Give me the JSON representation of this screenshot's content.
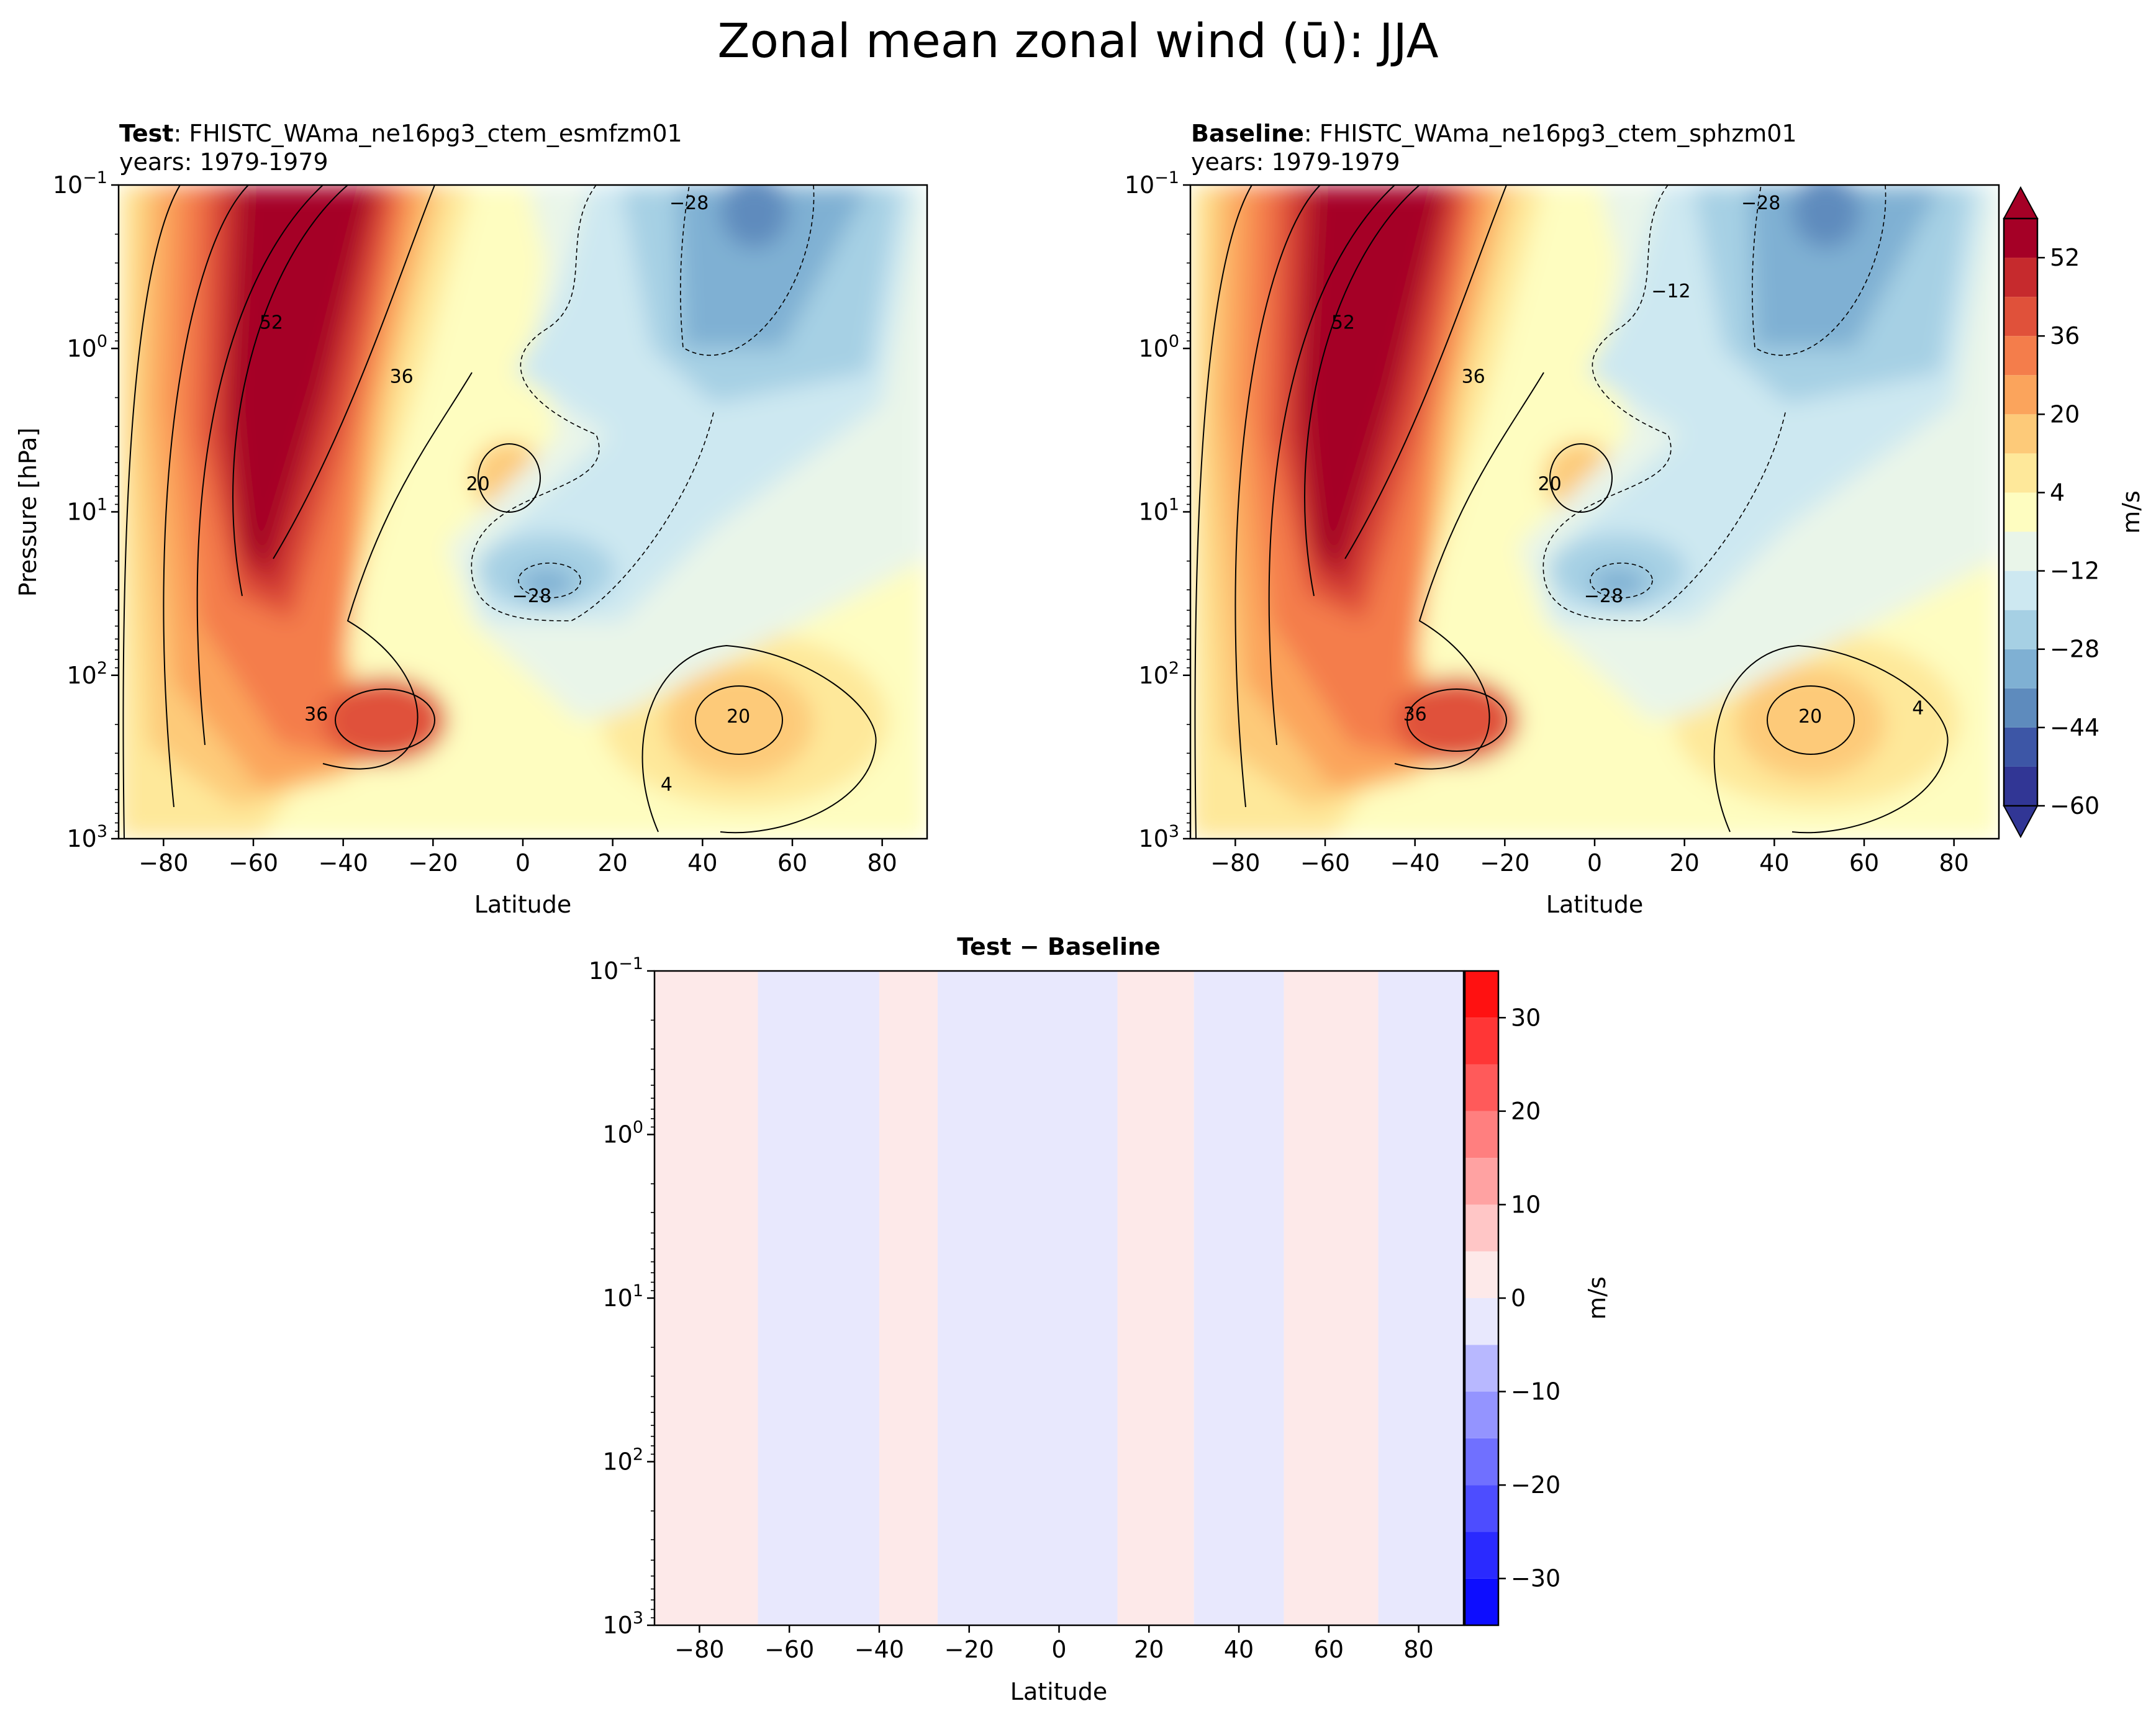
{
  "figure": {
    "title": "Zonal mean zonal wind (ū): JJA"
  },
  "chart_data": [
    {
      "type": "heatmap",
      "panel": "test",
      "title_prefix": "Test",
      "title_case": ": FHISTC_WAma_ne16pg3_ctem_esmfzm01",
      "title_years": "years: 1979-1979",
      "xlabel": "Latitude",
      "ylabel": "Pressure [hPa]",
      "xlim": [
        -90,
        90
      ],
      "ylim": [
        1000,
        0.1
      ],
      "yscale": "log",
      "x_ticks": [
        -80,
        -60,
        -40,
        -20,
        0,
        20,
        40,
        60,
        80
      ],
      "y_ticks": [
        {
          "value": 0.1,
          "base": "10",
          "exp": "−1"
        },
        {
          "value": 1,
          "base": "10",
          "exp": "0"
        },
        {
          "value": 10,
          "base": "10",
          "exp": "1"
        },
        {
          "value": 100,
          "base": "10",
          "exp": "2"
        },
        {
          "value": 1000,
          "base": "10",
          "exp": "3"
        }
      ],
      "contour_labels": [
        {
          "text": "52",
          "lat": -56,
          "p": 0.7
        },
        {
          "text": "36",
          "lat": -27,
          "p": 1.5
        },
        {
          "text": "20",
          "lat": -10,
          "p": 6.8
        },
        {
          "text": "−28",
          "lat": 2,
          "p": 33
        },
        {
          "text": "−28",
          "lat": 37,
          "p": 0.13
        },
        {
          "text": "36",
          "lat": -46,
          "p": 175
        },
        {
          "text": "20",
          "lat": 48,
          "p": 180
        },
        {
          "text": "4",
          "lat": 32,
          "p": 470
        }
      ]
    },
    {
      "type": "heatmap",
      "panel": "baseline",
      "title_prefix": "Baseline",
      "title_case": ": FHISTC_WAma_ne16pg3_ctem_sphzm01",
      "title_years": "years: 1979-1979",
      "xlabel": "Latitude",
      "xlim": [
        -90,
        90
      ],
      "ylim": [
        1000,
        0.1
      ],
      "yscale": "log",
      "x_ticks": [
        -80,
        -60,
        -40,
        -20,
        0,
        20,
        40,
        60,
        80
      ],
      "contour_labels": [
        {
          "text": "52",
          "lat": -56,
          "p": 0.7
        },
        {
          "text": "36",
          "lat": -27,
          "p": 1.5
        },
        {
          "text": "20",
          "lat": -10,
          "p": 6.8
        },
        {
          "text": "−12",
          "lat": 17,
          "p": 0.45
        },
        {
          "text": "−28",
          "lat": 2,
          "p": 33
        },
        {
          "text": "−28",
          "lat": 37,
          "p": 0.13
        },
        {
          "text": "36",
          "lat": -40,
          "p": 175
        },
        {
          "text": "20",
          "lat": 48,
          "p": 180
        },
        {
          "text": "4",
          "lat": 72,
          "p": 160
        }
      ],
      "colorbar": {
        "label": "m/s",
        "levels": [
          -60,
          -52,
          -44,
          -36,
          -28,
          -20,
          -12,
          -4,
          4,
          12,
          20,
          28,
          36,
          44,
          52,
          60
        ],
        "tick_labels": [
          "52",
          "36",
          "20",
          "4",
          "−12",
          "−28",
          "−44",
          "−60"
        ],
        "tick_values": [
          52,
          36,
          20,
          4,
          -12,
          -28,
          -44,
          -60
        ],
        "colors": [
          "#313695",
          "#3d56a6",
          "#5e8bbd",
          "#7fb0d3",
          "#a6d0e4",
          "#cde8f1",
          "#e9f5e9",
          "#fefdc0",
          "#fee89a",
          "#fdca79",
          "#fba45c",
          "#f47d4b",
          "#e0513a",
          "#c62a2d",
          "#a50026"
        ],
        "extend": "both"
      }
    },
    {
      "type": "heatmap",
      "panel": "difference",
      "title": "Test − Baseline",
      "xlabel": "Latitude",
      "xlim": [
        -90,
        90
      ],
      "ylim": [
        1000,
        0.1
      ],
      "yscale": "log",
      "x_ticks": [
        -80,
        -60,
        -40,
        -20,
        0,
        20,
        40,
        60,
        80
      ],
      "value_pattern_by_latitude": [
        {
          "lat_range": [
            -90,
            -67
          ],
          "sign": "positive",
          "approx_value": 2
        },
        {
          "lat_range": [
            -67,
            -40
          ],
          "sign": "negative",
          "approx_value": -2
        },
        {
          "lat_range": [
            -40,
            -27
          ],
          "sign": "positive",
          "approx_value": 2
        },
        {
          "lat_range": [
            -27,
            13
          ],
          "sign": "negative",
          "approx_value": -2
        },
        {
          "lat_range": [
            13,
            30
          ],
          "sign": "positive",
          "approx_value": 2
        },
        {
          "lat_range": [
            30,
            50
          ],
          "sign": "negative",
          "approx_value": -2
        },
        {
          "lat_range": [
            50,
            71
          ],
          "sign": "positive",
          "approx_value": 2
        },
        {
          "lat_range": [
            71,
            90
          ],
          "sign": "negative",
          "approx_value": -2
        }
      ],
      "colorbar": {
        "label": "m/s",
        "levels": [
          -35,
          -30,
          -25,
          -20,
          -15,
          -10,
          -5,
          0,
          5,
          10,
          15,
          20,
          25,
          30,
          35
        ],
        "tick_labels": [
          "30",
          "20",
          "10",
          "0",
          "−10",
          "−20",
          "−30"
        ],
        "tick_values": [
          30,
          20,
          10,
          0,
          -10,
          -20,
          -30
        ],
        "colors": [
          "#0d0dff",
          "#2a2aff",
          "#4d4dff",
          "#7070ff",
          "#9494ff",
          "#b8b8ff",
          "#e8e8fd",
          "#fde9e9",
          "#ffc6c6",
          "#ffa2a2",
          "#ff7f7f",
          "#ff5a5a",
          "#ff3636",
          "#ff1111"
        ]
      }
    }
  ]
}
